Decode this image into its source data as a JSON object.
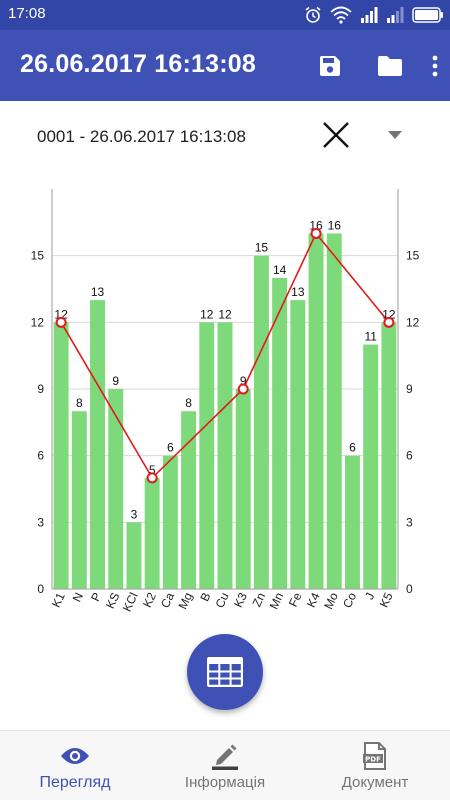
{
  "status_bar": {
    "time": "17:08",
    "icons": [
      "alarm-icon",
      "wifi-icon",
      "signal-icon",
      "signal-icon",
      "battery-icon"
    ]
  },
  "app_bar": {
    "title": "26.06.2017 16:13:08",
    "actions": [
      {
        "icon": "save-icon"
      },
      {
        "icon": "folder-icon"
      },
      {
        "icon": "more-vert-icon"
      }
    ]
  },
  "selector": {
    "value": "0001 - 26.06.2017 16:13:08",
    "clear_icon": "close-icon",
    "dropdown_icon": "dropdown-arrow-icon"
  },
  "colors": {
    "primary": "#3f51b5",
    "status_bar": "#3246a8",
    "bar_fill": "#7ed97a",
    "line": "#e21a1a"
  },
  "chart_data": {
    "type": "bar",
    "categories": [
      "K1",
      "N",
      "P",
      "KS",
      "KCl",
      "K2",
      "Ca",
      "Mg",
      "B",
      "Cu",
      "K3",
      "Zn",
      "Mn",
      "Fe",
      "K4",
      "Mo",
      "Co",
      "J",
      "K5"
    ],
    "values": [
      12,
      8,
      13,
      9,
      3,
      5,
      6,
      8,
      12,
      12,
      9,
      15,
      14,
      13,
      16,
      16,
      6,
      11,
      12
    ],
    "line": {
      "points": [
        {
          "category": "K1",
          "value": 12
        },
        {
          "category": "K2",
          "value": 5
        },
        {
          "category": "K3",
          "value": 9
        },
        {
          "category": "K4",
          "value": 16
        },
        {
          "category": "K5",
          "value": 12
        }
      ]
    },
    "ylim": [
      0,
      18
    ],
    "yticks": [
      0,
      3,
      6,
      9,
      12,
      15
    ],
    "right_axis": true,
    "grid": "horizontal",
    "data_labels": true
  },
  "fab": {
    "icon": "table-icon"
  },
  "bottom_nav": {
    "items": [
      {
        "label": "Перегляд",
        "icon": "eye-icon",
        "active": true
      },
      {
        "label": "Інформація",
        "icon": "edit-icon",
        "active": false
      },
      {
        "label": "Документ",
        "icon": "pdf-icon",
        "active": false
      }
    ]
  }
}
